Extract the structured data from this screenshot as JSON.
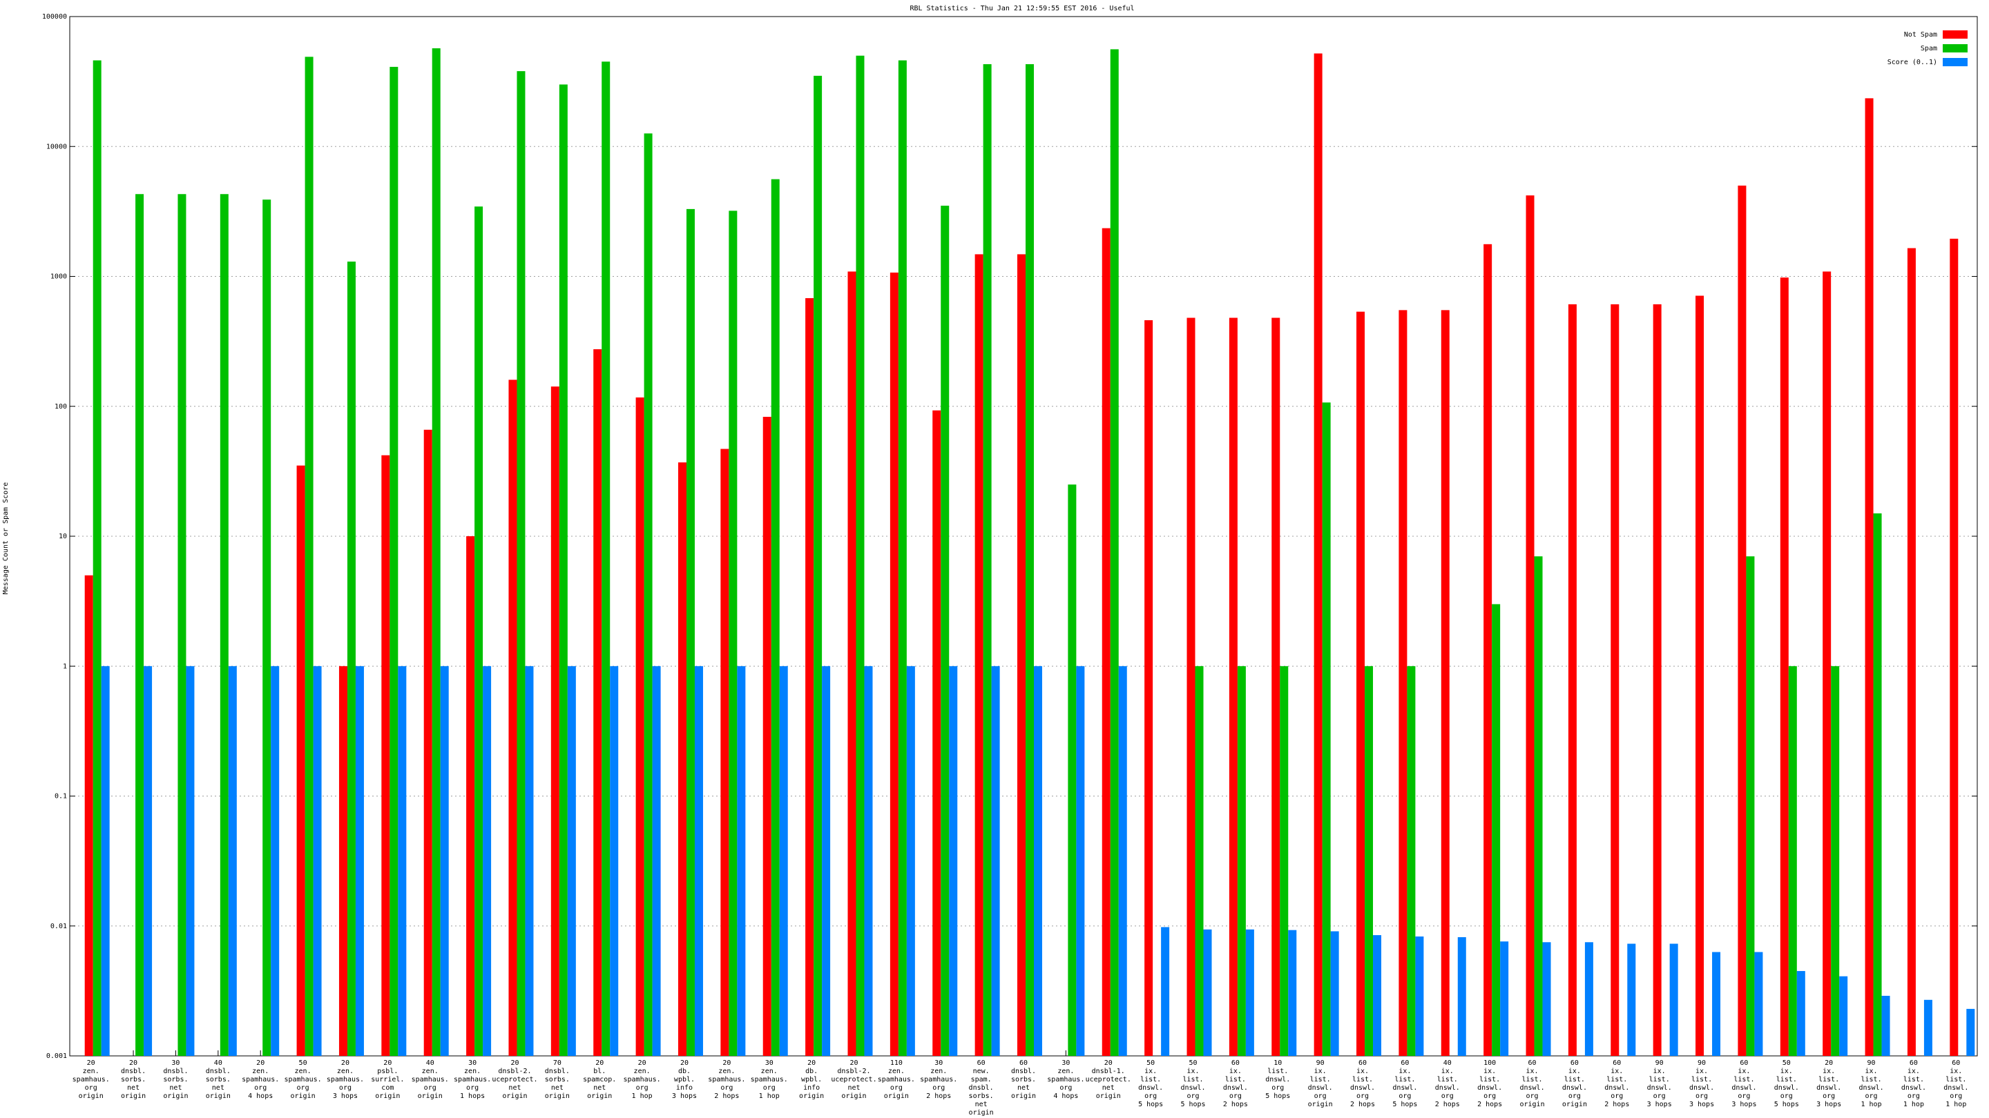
{
  "chart_data": {
    "type": "bar",
    "title": "RBL Statistics - Thu Jan 21 12:59:55 EST 2016 - Useful",
    "y_label": "Message Count or Spam Score",
    "log_scale": true,
    "grid": true,
    "legend": "top-right",
    "ylim": [
      0.001,
      100000
    ],
    "yticks": [
      0.001,
      0.01,
      0.1,
      1,
      10,
      100,
      1000,
      10000,
      100000
    ],
    "categories": [
      [
        "20",
        "zen.",
        "spamhaus.",
        "org",
        "origin"
      ],
      [
        "20",
        "dnsbl.",
        "sorbs.",
        "net",
        "origin"
      ],
      [
        "30",
        "dnsbl.",
        "sorbs.",
        "net",
        "origin"
      ],
      [
        "40",
        "dnsbl.",
        "sorbs.",
        "net",
        "origin"
      ],
      [
        "20",
        "zen.",
        "spamhaus.",
        "org",
        "4 hops"
      ],
      [
        "50",
        "zen.",
        "spamhaus.",
        "org",
        "origin"
      ],
      [
        "20",
        "zen.",
        "spamhaus.",
        "org",
        "3 hops"
      ],
      [
        "20",
        "psbl.",
        "surriel.",
        "com",
        "origin"
      ],
      [
        "40",
        "zen.",
        "spamhaus.",
        "org",
        "origin"
      ],
      [
        "30",
        "zen.",
        "spamhaus.",
        "org",
        "1 hops"
      ],
      [
        "20",
        "dnsbl-2.",
        "uceprotect.",
        "net",
        "origin"
      ],
      [
        "70",
        "dnsbl.",
        "sorbs.",
        "net",
        "origin"
      ],
      [
        "20",
        "bl.",
        "spamcop.",
        "net",
        "origin"
      ],
      [
        "20",
        "zen.",
        "spamhaus.",
        "org",
        "1 hop"
      ],
      [
        "20",
        "db.",
        "wpbl.",
        "info",
        "3 hops"
      ],
      [
        "20",
        "zen.",
        "spamhaus.",
        "org",
        "2 hops"
      ],
      [
        "30",
        "zen.",
        "spamhaus.",
        "org",
        "1 hop"
      ],
      [
        "20",
        "db.",
        "wpbl.",
        "info",
        "origin"
      ],
      [
        "20",
        "dnsbl-2.",
        "uceprotect.",
        "net",
        "origin"
      ],
      [
        "110",
        "zen.",
        "spamhaus.",
        "org",
        "origin"
      ],
      [
        "30",
        "zen.",
        "spamhaus.",
        "org",
        "2 hops"
      ],
      [
        "60",
        "new.",
        "spam.",
        "dnsbl.",
        "sorbs.",
        "net",
        "origin"
      ],
      [
        "60",
        "dnsbl.",
        "sorbs.",
        "net",
        "origin"
      ],
      [
        "30",
        "zen.",
        "spamhaus.",
        "org",
        "4 hops"
      ],
      [
        "20",
        "dnsbl-1.",
        "uceprotect.",
        "net",
        "origin"
      ],
      [
        "50",
        "ix.",
        "list.",
        "dnswl.",
        "org",
        "5 hops"
      ],
      [
        "50",
        "ix.",
        "list.",
        "dnswl.",
        "org",
        "5 hops"
      ],
      [
        "60",
        "ix.",
        "list.",
        "dnswl.",
        "org",
        "2 hops"
      ],
      [
        "10",
        "list.",
        "dnswl.",
        "org",
        "5 hops"
      ],
      [
        "90",
        "ix.",
        "list.",
        "dnswl.",
        "org",
        "origin"
      ],
      [
        "60",
        "ix.",
        "list.",
        "dnswl.",
        "org",
        "2 hops"
      ],
      [
        "60",
        "ix.",
        "list.",
        "dnswl.",
        "org",
        "5 hops"
      ],
      [
        "40",
        "ix.",
        "list.",
        "dnswl.",
        "org",
        "2 hops"
      ],
      [
        "100",
        "ix.",
        "list.",
        "dnswl.",
        "org",
        "2 hops"
      ],
      [
        "60",
        "ix.",
        "list.",
        "dnswl.",
        "org",
        "origin"
      ],
      [
        "60",
        "ix.",
        "list.",
        "dnswl.",
        "org",
        "origin"
      ],
      [
        "60",
        "ix.",
        "list.",
        "dnswl.",
        "org",
        "2 hops"
      ],
      [
        "90",
        "ix.",
        "list.",
        "dnswl.",
        "org",
        "3 hops"
      ],
      [
        "90",
        "ix.",
        "list.",
        "dnswl.",
        "org",
        "3 hops"
      ],
      [
        "60",
        "ix.",
        "list.",
        "dnswl.",
        "org",
        "3 hops"
      ],
      [
        "50",
        "ix.",
        "list.",
        "dnswl.",
        "org",
        "5 hops"
      ],
      [
        "20",
        "ix.",
        "list.",
        "dnswl.",
        "org",
        "3 hops"
      ],
      [
        "90",
        "ix.",
        "list.",
        "dnswl.",
        "org",
        "1 hop"
      ],
      [
        "60",
        "ix.",
        "list.",
        "dnswl.",
        "org",
        "1 hop"
      ],
      [
        "60",
        "ix.",
        "list.",
        "dnswl.",
        "org",
        "1 hop"
      ]
    ],
    "series": [
      {
        "name": "Not Spam",
        "color": "#ff0000",
        "values": [
          5,
          null,
          null,
          null,
          null,
          35,
          1,
          42,
          66,
          10,
          160,
          142,
          275,
          117,
          37,
          47,
          83,
          680,
          1090,
          1070,
          93,
          1480,
          1480,
          null,
          2350,
          460,
          480,
          480,
          480,
          52000,
          535,
          550,
          550,
          1770,
          4200,
          610,
          610,
          610,
          710,
          5000,
          980,
          1090,
          23500,
          1650,
          1950
        ]
      },
      {
        "name": "Spam",
        "color": "#00c000",
        "values": [
          46000,
          4300,
          4300,
          4300,
          3900,
          49000,
          1300,
          41000,
          57000,
          3450,
          38000,
          30000,
          45000,
          12600,
          3300,
          3200,
          5600,
          35000,
          50000,
          46000,
          3500,
          43000,
          43000,
          25,
          56000,
          null,
          1,
          1,
          1,
          107,
          1,
          1,
          null,
          3,
          7,
          null,
          null,
          null,
          null,
          7,
          1,
          1,
          15,
          null,
          null
        ]
      },
      {
        "name": "Score (0..1)",
        "color": "#0080ff",
        "values": [
          1,
          1,
          1,
          1,
          1,
          1,
          1,
          1,
          1,
          1,
          1,
          1,
          1,
          1,
          1,
          1,
          1,
          1,
          1,
          1,
          1,
          1,
          1,
          1,
          1,
          0.0098,
          0.0094,
          0.0094,
          0.0093,
          0.0091,
          0.0085,
          0.0083,
          0.0082,
          0.0076,
          0.0075,
          0.0075,
          0.0073,
          0.0073,
          0.0063,
          0.0063,
          0.0045,
          0.0041,
          0.0029,
          0.0027,
          0.0023
        ]
      }
    ]
  }
}
